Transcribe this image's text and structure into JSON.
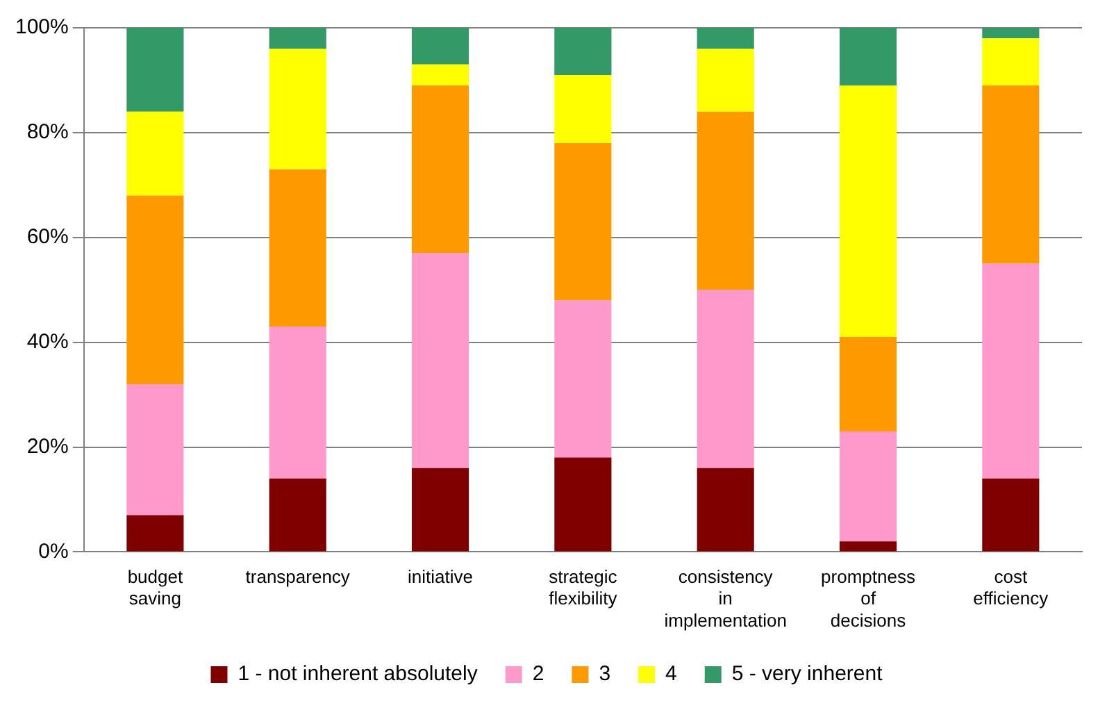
{
  "chart_data": {
    "type": "bar",
    "stacked": true,
    "categories": [
      "budget saving",
      "transparency",
      "initiative",
      "strategic flexibility",
      "consistency in implementation",
      "promptness of decisions",
      "cost efficiency"
    ],
    "series": [
      {
        "name": "1 - not inherent absolutely",
        "color": "#800000",
        "values": [
          7,
          14,
          16,
          18,
          16,
          2,
          14
        ]
      },
      {
        "name": "2",
        "color": "#ff99cc",
        "values": [
          25,
          29,
          41,
          30,
          34,
          21,
          41
        ]
      },
      {
        "name": "3",
        "color": "#ff9900",
        "values": [
          36,
          30,
          32,
          30,
          34,
          18,
          34
        ]
      },
      {
        "name": "4",
        "color": "#ffff00",
        "values": [
          16,
          23,
          4,
          13,
          12,
          48,
          9
        ]
      },
      {
        "name": "5 - very inherent",
        "color": "#339966",
        "values": [
          16,
          4,
          7,
          9,
          4,
          11,
          2
        ]
      }
    ],
    "ylim": [
      0,
      100
    ],
    "yticks": [
      {
        "value": 0,
        "label": "0%"
      },
      {
        "value": 20,
        "label": "20%"
      },
      {
        "value": 40,
        "label": "40%"
      },
      {
        "value": 60,
        "label": "60%"
      },
      {
        "value": 80,
        "label": "80%"
      },
      {
        "value": 100,
        "label": "100%"
      }
    ],
    "grid": "y",
    "legend": "bottom"
  }
}
